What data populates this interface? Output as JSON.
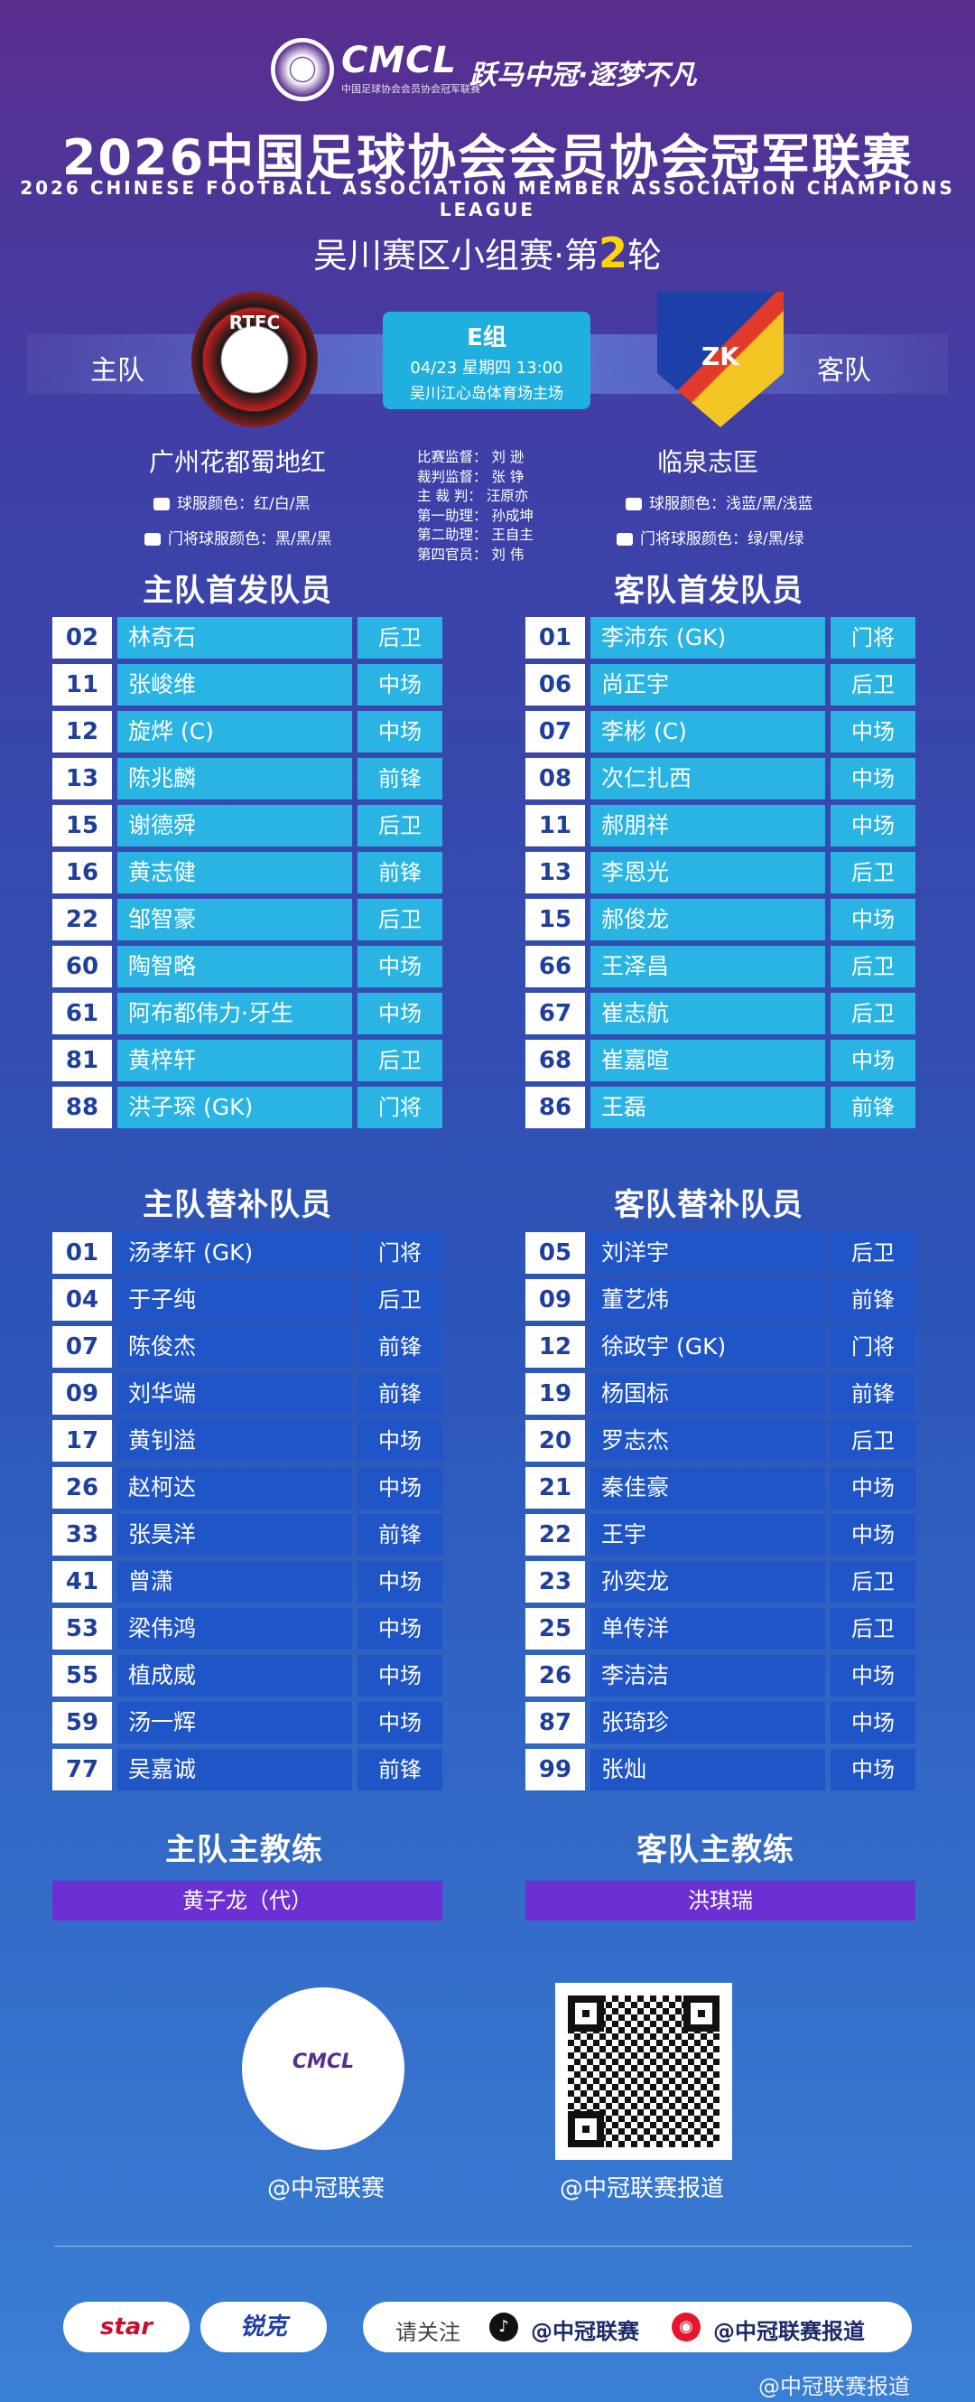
{
  "header": {
    "logo_text": "CMCL",
    "logo_sub": "中国足球协会会员协会冠军联赛",
    "slogan": "跃马中冠·逐梦不凡",
    "title": "2026中国足球协会会员协会冠军联赛",
    "title_en": "2026 CHINESE FOOTBALL ASSOCIATION MEMBER ASSOCIATION CHAMPIONS LEAGUE",
    "round_prefix": "吴川赛区小组赛·第",
    "round_num": "2",
    "round_suffix": "轮"
  },
  "match": {
    "home_label": "主队",
    "away_label": "客队",
    "group": "E组",
    "datetime": "04/23 星期四 13:00",
    "venue": "吴川江心岛体育场主场",
    "home_crest_text": "RTFC",
    "away_crest_text": "ZK"
  },
  "home_team": {
    "name": "广州花都蜀地红",
    "kit": "球服颜色：红/白/黑",
    "gk_kit": "门将球服颜色：黑/黑/黑"
  },
  "away_team": {
    "name": "临泉志匡",
    "kit": "球服颜色：浅蓝/黑/浅蓝",
    "gk_kit": "门将球服颜色：绿/黑/绿"
  },
  "officials": [
    "比赛监督： 刘 逊",
    "裁判监督： 张 铮",
    "主 裁 判： 汪原亦",
    "第一助理： 孙成坤",
    "第二助理： 王自主",
    "第四官员： 刘 伟"
  ],
  "sections": {
    "home_start": "主队首发队员",
    "away_start": "客队首发队员",
    "home_sub": "主队替补队员",
    "away_sub": "客队替补队员",
    "home_coach": "主队主教练",
    "away_coach": "客队主教练"
  },
  "home_starters": [
    {
      "num": "02",
      "name": "林奇石",
      "pos": "后卫"
    },
    {
      "num": "11",
      "name": "张峻维",
      "pos": "中场"
    },
    {
      "num": "12",
      "name": "旋烨 (C)",
      "pos": "中场"
    },
    {
      "num": "13",
      "name": "陈兆麟",
      "pos": "前锋"
    },
    {
      "num": "15",
      "name": "谢德舜",
      "pos": "后卫"
    },
    {
      "num": "16",
      "name": "黄志健",
      "pos": "前锋"
    },
    {
      "num": "22",
      "name": "邹智豪",
      "pos": "后卫"
    },
    {
      "num": "60",
      "name": "陶智略",
      "pos": "中场"
    },
    {
      "num": "61",
      "name": "阿布都伟力·牙生",
      "pos": "中场"
    },
    {
      "num": "81",
      "name": "黄梓轩",
      "pos": "后卫"
    },
    {
      "num": "88",
      "name": "洪子琛 (GK)",
      "pos": "门将"
    }
  ],
  "away_starters": [
    {
      "num": "01",
      "name": "李沛东 (GK)",
      "pos": "门将"
    },
    {
      "num": "06",
      "name": "尚正宇",
      "pos": "后卫"
    },
    {
      "num": "07",
      "name": "李彬 (C)",
      "pos": "中场"
    },
    {
      "num": "08",
      "name": "次仁扎西",
      "pos": "中场"
    },
    {
      "num": "11",
      "name": "郝朋祥",
      "pos": "中场"
    },
    {
      "num": "13",
      "name": "李恩光",
      "pos": "后卫"
    },
    {
      "num": "15",
      "name": "郝俊龙",
      "pos": "中场"
    },
    {
      "num": "66",
      "name": "王泽昌",
      "pos": "后卫"
    },
    {
      "num": "67",
      "name": "崔志航",
      "pos": "后卫"
    },
    {
      "num": "68",
      "name": "崔嘉暄",
      "pos": "中场"
    },
    {
      "num": "86",
      "name": "王磊",
      "pos": "前锋"
    }
  ],
  "home_subs": [
    {
      "num": "01",
      "name": "汤孝轩 (GK)",
      "pos": "门将"
    },
    {
      "num": "04",
      "name": "于子纯",
      "pos": "后卫"
    },
    {
      "num": "07",
      "name": "陈俊杰",
      "pos": "前锋"
    },
    {
      "num": "09",
      "name": "刘华端",
      "pos": "前锋"
    },
    {
      "num": "17",
      "name": "黄钊溢",
      "pos": "中场"
    },
    {
      "num": "26",
      "name": "赵柯达",
      "pos": "中场"
    },
    {
      "num": "33",
      "name": "张昊洋",
      "pos": "前锋"
    },
    {
      "num": "41",
      "name": "曾潇",
      "pos": "中场"
    },
    {
      "num": "53",
      "name": "梁伟鸿",
      "pos": "中场"
    },
    {
      "num": "55",
      "name": "植成威",
      "pos": "中场"
    },
    {
      "num": "59",
      "name": "汤一辉",
      "pos": "中场"
    },
    {
      "num": "77",
      "name": "吴嘉诚",
      "pos": "前锋"
    }
  ],
  "away_subs": [
    {
      "num": "05",
      "name": "刘洋宇",
      "pos": "后卫"
    },
    {
      "num": "09",
      "name": "董艺炜",
      "pos": "前锋"
    },
    {
      "num": "12",
      "name": "徐政宇 (GK)",
      "pos": "门将"
    },
    {
      "num": "19",
      "name": "杨国标",
      "pos": "前锋"
    },
    {
      "num": "20",
      "name": "罗志杰",
      "pos": "后卫"
    },
    {
      "num": "21",
      "name": "秦佳豪",
      "pos": "中场"
    },
    {
      "num": "22",
      "name": "王宇",
      "pos": "中场"
    },
    {
      "num": "23",
      "name": "孙奕龙",
      "pos": "后卫"
    },
    {
      "num": "25",
      "name": "单传洋",
      "pos": "后卫"
    },
    {
      "num": "26",
      "name": "李洁洁",
      "pos": "中场"
    },
    {
      "num": "87",
      "name": "张琦珍",
      "pos": "中场"
    },
    {
      "num": "99",
      "name": "张灿",
      "pos": "中场"
    }
  ],
  "coaches": {
    "home": "黄子龙（代）",
    "away": "洪琪瑞"
  },
  "qr": {
    "circle_text": "CMCL",
    "left_label": "@中冠联赛",
    "right_label": "@中冠联赛报道"
  },
  "footer": {
    "sponsor1": "star",
    "sponsor2": "锐克",
    "follow": "请关注",
    "handle1": "@中冠联赛",
    "handle2": "@中冠联赛报道",
    "icon1": "douyin-icon",
    "icon2": "weibo-icon",
    "watermark": "@中冠联赛报道"
  }
}
